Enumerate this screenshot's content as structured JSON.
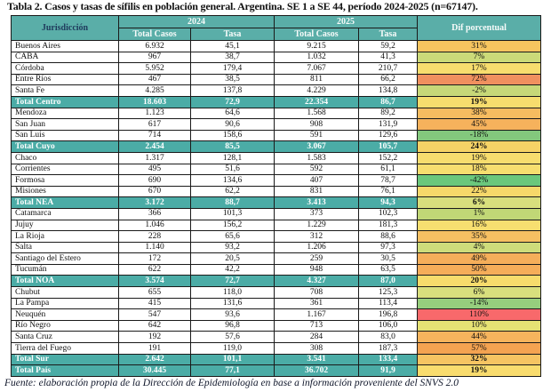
{
  "title": "Tabla 2. Casos y tasas de sífilis en población general. Argentina. SE 1 a SE 44, período 2024-2025 (n=67147).",
  "footer": "Fuente: elaboración propia de la Dirección de Epidemiología en base a información proveniente del SNVS 2.0",
  "colors": {
    "header_bg": "#5AAEA8",
    "total_row_bg": "#4BACA6",
    "header_text_light": "#f7fbfa",
    "header_text_dark": "#1F3A5C",
    "border": "#1a1a1a"
  },
  "table": {
    "headers": {
      "jurisdiccion": "Jurisdicción",
      "year_2024": "2024",
      "year_2025": "2025",
      "total_casos": "Total Casos",
      "tasa": "Tasa",
      "dif": "Dif porcentual"
    },
    "rows": [
      {
        "jurisdiccion": "Buenos Aires",
        "casos_2024": "6.932",
        "tasa_2024": "45,1",
        "casos_2025": "9.215",
        "tasa_2025": "59,2",
        "dif": "31%",
        "dif_color": "#F6C55F",
        "is_total": false
      },
      {
        "jurisdiccion": "CABA",
        "casos_2024": "967",
        "tasa_2024": "38,7",
        "casos_2025": "1.032",
        "tasa_2025": "41,3",
        "dif": "7%",
        "dif_color": "#CBDA79",
        "is_total": false
      },
      {
        "jurisdiccion": "Córdoba",
        "casos_2024": "5.952",
        "tasa_2024": "179,4",
        "casos_2025": "7.067",
        "tasa_2025": "210,7",
        "dif": "17%",
        "dif_color": "#F7DD6E",
        "is_total": false
      },
      {
        "jurisdiccion": "Entre Ríos",
        "casos_2024": "467",
        "tasa_2024": "38,5",
        "casos_2025": "811",
        "tasa_2025": "66,2",
        "dif": "72%",
        "dif_color": "#F0905F",
        "is_total": false
      },
      {
        "jurisdiccion": "Santa Fe",
        "casos_2024": "4.285",
        "tasa_2024": "137,8",
        "casos_2025": "4.229",
        "tasa_2025": "134,8",
        "dif": "-2%",
        "dif_color": "#C7D878",
        "is_total": false
      },
      {
        "jurisdiccion": "Total Centro",
        "casos_2024": "18.603",
        "tasa_2024": "72,9",
        "casos_2025": "22.354",
        "tasa_2025": "86,7",
        "dif": "19%",
        "dif_color": "#F7DD6E",
        "is_total": true
      },
      {
        "jurisdiccion": "Mendoza",
        "casos_2024": "1.123",
        "tasa_2024": "64,6",
        "casos_2025": "1.568",
        "tasa_2025": "89,2",
        "dif": "38%",
        "dif_color": "#F6BC60",
        "is_total": false
      },
      {
        "jurisdiccion": "San Juan",
        "casos_2024": "617",
        "tasa_2024": "90,6",
        "casos_2025": "908",
        "tasa_2025": "131,9",
        "dif": "45%",
        "dif_color": "#F6B25C",
        "is_total": false
      },
      {
        "jurisdiccion": "San Luis",
        "casos_2024": "714",
        "tasa_2024": "158,6",
        "casos_2025": "591",
        "tasa_2025": "129,6",
        "dif": "-18%",
        "dif_color": "#83C87D",
        "is_total": false
      },
      {
        "jurisdiccion": "Total Cuyo",
        "casos_2024": "2.454",
        "tasa_2024": "85,5",
        "casos_2025": "3.067",
        "tasa_2025": "105,7",
        "dif": "24%",
        "dif_color": "#F6D366",
        "is_total": true
      },
      {
        "jurisdiccion": "Chaco",
        "casos_2024": "1.317",
        "tasa_2024": "128,1",
        "casos_2025": "1.583",
        "tasa_2025": "152,2",
        "dif": "19%",
        "dif_color": "#F7DD6E",
        "is_total": false
      },
      {
        "jurisdiccion": "Corrientes",
        "casos_2024": "495",
        "tasa_2024": "51,6",
        "casos_2025": "592",
        "tasa_2025": "61,1",
        "dif": "18%",
        "dif_color": "#F7DE6F",
        "is_total": false
      },
      {
        "jurisdiccion": "Formosa",
        "casos_2024": "690",
        "tasa_2024": "134,6",
        "casos_2025": "407",
        "tasa_2025": "78,7",
        "dif": "-42%",
        "dif_color": "#6BC77C",
        "is_total": false
      },
      {
        "jurisdiccion": "Misiones",
        "casos_2024": "670",
        "tasa_2024": "62,2",
        "casos_2025": "831",
        "tasa_2025": "76,1",
        "dif": "22%",
        "dif_color": "#F6D86A",
        "is_total": false
      },
      {
        "jurisdiccion": "Total NEA",
        "casos_2024": "3.172",
        "tasa_2024": "88,7",
        "casos_2025": "3.413",
        "tasa_2025": "94,3",
        "dif": "6%",
        "dif_color": "#D8DF7D",
        "is_total": true
      },
      {
        "jurisdiccion": "Catamarca",
        "casos_2024": "366",
        "tasa_2024": "101,3",
        "casos_2025": "373",
        "tasa_2025": "102,3",
        "dif": "1%",
        "dif_color": "#C1D776",
        "is_total": false
      },
      {
        "jurisdiccion": "Jujuy",
        "casos_2024": "1.046",
        "tasa_2024": "156,2",
        "casos_2025": "1.229",
        "tasa_2025": "181,3",
        "dif": "16%",
        "dif_color": "#F7DF70",
        "is_total": false
      },
      {
        "jurisdiccion": "La Rioja",
        "casos_2024": "228",
        "tasa_2024": "65,6",
        "casos_2025": "312",
        "tasa_2025": "88,6",
        "dif": "35%",
        "dif_color": "#F6C062",
        "is_total": false
      },
      {
        "jurisdiccion": "Salta",
        "casos_2024": "1.140",
        "tasa_2024": "93,2",
        "casos_2025": "1.206",
        "tasa_2025": "97,3",
        "dif": "4%",
        "dif_color": "#CEDC7B",
        "is_total": false
      },
      {
        "jurisdiccion": "Santiago del Estero",
        "casos_2024": "172",
        "tasa_2024": "20,5",
        "casos_2025": "259",
        "tasa_2025": "30,5",
        "dif": "49%",
        "dif_color": "#F5AE5A",
        "is_total": false
      },
      {
        "jurisdiccion": "Tucumán",
        "casos_2024": "622",
        "tasa_2024": "42,2",
        "casos_2025": "948",
        "tasa_2025": "63,5",
        "dif": "50%",
        "dif_color": "#F5AD59",
        "is_total": false
      },
      {
        "jurisdiccion": "Total NOA",
        "casos_2024": "3.574",
        "tasa_2024": "72,7",
        "casos_2025": "4.327",
        "tasa_2025": "87,0",
        "dif": "20%",
        "dif_color": "#F7DC6C",
        "is_total": true
      },
      {
        "jurisdiccion": "Chubut",
        "casos_2024": "655",
        "tasa_2024": "118,0",
        "casos_2025": "708",
        "tasa_2025": "125,3",
        "dif": "6%",
        "dif_color": "#D8DF7D",
        "is_total": false
      },
      {
        "jurisdiccion": "La Pampa",
        "casos_2024": "415",
        "tasa_2024": "131,6",
        "casos_2025": "361",
        "tasa_2025": "113,4",
        "dif": "-14%",
        "dif_color": "#96CE7D",
        "is_total": false
      },
      {
        "jurisdiccion": "Neuquén",
        "casos_2024": "547",
        "tasa_2024": "93,6",
        "casos_2025": "1.167",
        "tasa_2025": "196,8",
        "dif": "110%",
        "dif_color": "#F8696B",
        "is_total": false
      },
      {
        "jurisdiccion": "Río Negro",
        "casos_2024": "642",
        "tasa_2024": "96,8",
        "casos_2025": "713",
        "tasa_2025": "106,0",
        "dif": "10%",
        "dif_color": "#E5E274",
        "is_total": false
      },
      {
        "jurisdiccion": "Santa Cruz",
        "casos_2024": "192",
        "tasa_2024": "57,6",
        "casos_2025": "284",
        "tasa_2025": "83,0",
        "dif": "44%",
        "dif_color": "#F6B45D",
        "is_total": false
      },
      {
        "jurisdiccion": "Tierra del Fuego",
        "casos_2024": "191",
        "tasa_2024": "119,0",
        "casos_2025": "308",
        "tasa_2025": "187,3",
        "dif": "57%",
        "dif_color": "#F4A351",
        "is_total": false
      },
      {
        "jurisdiccion": "Total Sur",
        "casos_2024": "2.642",
        "tasa_2024": "101,1",
        "casos_2025": "3.541",
        "tasa_2025": "133,4",
        "dif": "32%",
        "dif_color": "#F6C462",
        "is_total": true
      },
      {
        "jurisdiccion": "Total País",
        "casos_2024": "30.445",
        "tasa_2024": "77,1",
        "casos_2025": "36.702",
        "tasa_2025": "91,9",
        "dif": "19%",
        "dif_color": "#F9DC6E",
        "is_total": true
      }
    ]
  },
  "chart_data": {
    "type": "table",
    "title": "Tabla 2. Casos y tasas de sífilis en población general. Argentina. SE 1 a SE 44, período 2024-2025 (n=67147).",
    "columns": [
      "Jurisdicción",
      "2024 Total Casos",
      "2024 Tasa",
      "2025 Total Casos",
      "2025 Tasa",
      "Dif porcentual"
    ],
    "rows": [
      [
        "Buenos Aires",
        "6.932",
        "45,1",
        "9.215",
        "59,2",
        "31%"
      ],
      [
        "CABA",
        "967",
        "38,7",
        "1.032",
        "41,3",
        "7%"
      ],
      [
        "Córdoba",
        "5.952",
        "179,4",
        "7.067",
        "210,7",
        "17%"
      ],
      [
        "Entre Ríos",
        "467",
        "38,5",
        "811",
        "66,2",
        "72%"
      ],
      [
        "Santa Fe",
        "4.285",
        "137,8",
        "4.229",
        "134,8",
        "-2%"
      ],
      [
        "Total Centro",
        "18.603",
        "72,9",
        "22.354",
        "86,7",
        "19%"
      ],
      [
        "Mendoza",
        "1.123",
        "64,6",
        "1.568",
        "89,2",
        "38%"
      ],
      [
        "San Juan",
        "617",
        "90,6",
        "908",
        "131,9",
        "45%"
      ],
      [
        "San Luis",
        "714",
        "158,6",
        "591",
        "129,6",
        "-18%"
      ],
      [
        "Total Cuyo",
        "2.454",
        "85,5",
        "3.067",
        "105,7",
        "24%"
      ],
      [
        "Chaco",
        "1.317",
        "128,1",
        "1.583",
        "152,2",
        "19%"
      ],
      [
        "Corrientes",
        "495",
        "51,6",
        "592",
        "61,1",
        "18%"
      ],
      [
        "Formosa",
        "690",
        "134,6",
        "407",
        "78,7",
        "-42%"
      ],
      [
        "Misiones",
        "670",
        "62,2",
        "831",
        "76,1",
        "22%"
      ],
      [
        "Total NEA",
        "3.172",
        "88,7",
        "3.413",
        "94,3",
        "6%"
      ],
      [
        "Catamarca",
        "366",
        "101,3",
        "373",
        "102,3",
        "1%"
      ],
      [
        "Jujuy",
        "1.046",
        "156,2",
        "1.229",
        "181,3",
        "16%"
      ],
      [
        "La Rioja",
        "228",
        "65,6",
        "312",
        "88,6",
        "35%"
      ],
      [
        "Salta",
        "1.140",
        "93,2",
        "1.206",
        "97,3",
        "4%"
      ],
      [
        "Santiago del Estero",
        "172",
        "20,5",
        "259",
        "30,5",
        "49%"
      ],
      [
        "Tucumán",
        "622",
        "42,2",
        "948",
        "63,5",
        "50%"
      ],
      [
        "Total NOA",
        "3.574",
        "72,7",
        "4.327",
        "87,0",
        "20%"
      ],
      [
        "Chubut",
        "655",
        "118,0",
        "708",
        "125,3",
        "6%"
      ],
      [
        "La Pampa",
        "415",
        "131,6",
        "361",
        "113,4",
        "-14%"
      ],
      [
        "Neuquén",
        "547",
        "93,6",
        "1.167",
        "196,8",
        "110%"
      ],
      [
        "Río Negro",
        "642",
        "96,8",
        "713",
        "106,0",
        "10%"
      ],
      [
        "Santa Cruz",
        "192",
        "57,6",
        "284",
        "83,0",
        "44%"
      ],
      [
        "Tierra del Fuego",
        "191",
        "119,0",
        "308",
        "187,3",
        "57%"
      ],
      [
        "Total Sur",
        "2.642",
        "101,1",
        "3.541",
        "133,4",
        "32%"
      ],
      [
        "Total País",
        "30.445",
        "77,1",
        "36.702",
        "91,9",
        "19%"
      ]
    ]
  }
}
